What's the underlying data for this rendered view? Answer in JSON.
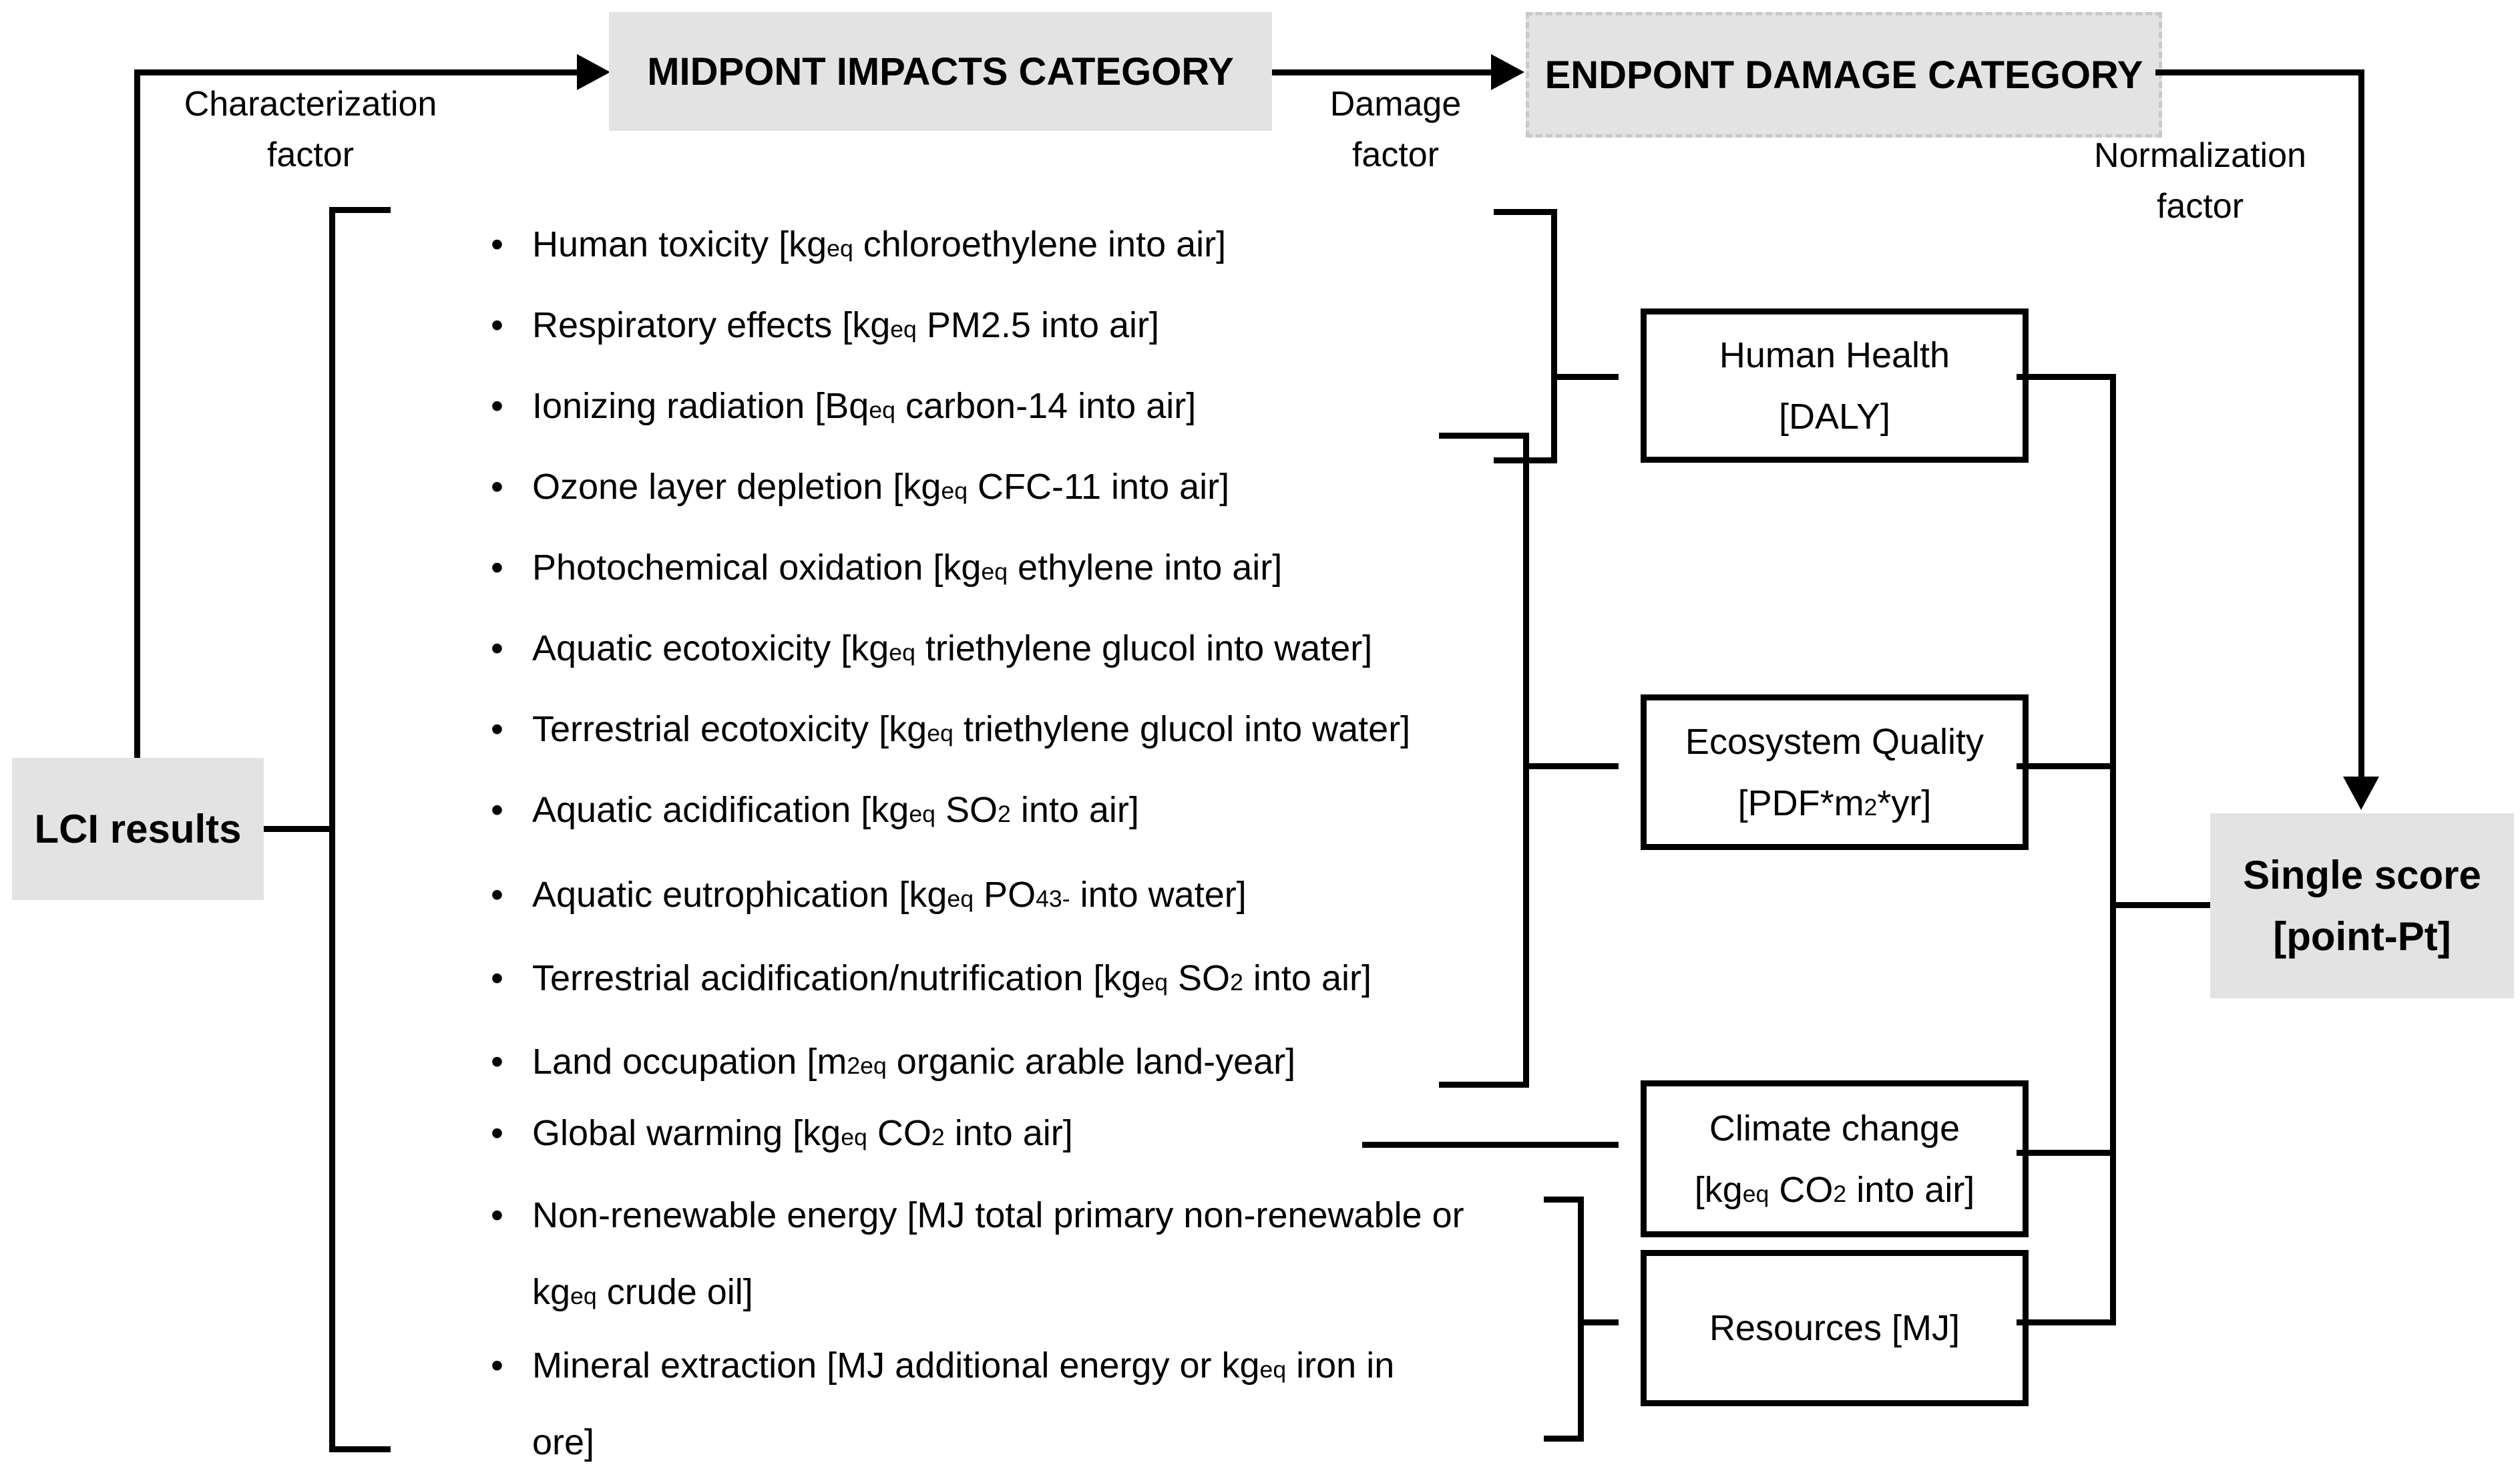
{
  "flow": {
    "midpoint_title": "MIDPONT IMPACTS CATEGORY",
    "endpoint_title": "ENDPONT DAMAGE CATEGORY",
    "lci_label": "LCI results",
    "characterization_label": [
      "Characterization",
      "factor"
    ],
    "damage_label": [
      "Damage",
      "factor"
    ],
    "normalization_label": [
      "Normalization",
      "factor"
    ],
    "single_score_lines": [
      "Single score",
      "[point-Pt]"
    ]
  },
  "midpoint_items": [
    {
      "segments": [
        {
          "t": "txt",
          "v": "Human toxicity [kg"
        },
        {
          "t": "sub",
          "v": "eq"
        },
        {
          "t": "txt",
          "v": " chloroethylene into air]"
        }
      ]
    },
    {
      "segments": [
        {
          "t": "txt",
          "v": "Respiratory effects [kg"
        },
        {
          "t": "sub",
          "v": "eq"
        },
        {
          "t": "txt",
          "v": " PM2.5 into air]"
        }
      ]
    },
    {
      "segments": [
        {
          "t": "txt",
          "v": "Ionizing radiation [Bq"
        },
        {
          "t": "sub",
          "v": "eq"
        },
        {
          "t": "txt",
          "v": " carbon-14 into air]"
        }
      ]
    },
    {
      "segments": [
        {
          "t": "txt",
          "v": "Ozone layer depletion [kg"
        },
        {
          "t": "sub",
          "v": "eq"
        },
        {
          "t": "txt",
          "v": " CFC-11 into air]"
        }
      ]
    },
    {
      "segments": [
        {
          "t": "txt",
          "v": "Photochemical oxidation [kg"
        },
        {
          "t": "sub",
          "v": "eq"
        },
        {
          "t": "txt",
          "v": " ethylene into air]"
        }
      ]
    },
    {
      "segments": [
        {
          "t": "txt",
          "v": "Aquatic ecotoxicity [kg"
        },
        {
          "t": "sub",
          "v": "eq"
        },
        {
          "t": "txt",
          "v": " triethylene glucol into water]"
        }
      ]
    },
    {
      "segments": [
        {
          "t": "txt",
          "v": "Terrestrial ecotoxicity [kg"
        },
        {
          "t": "sub",
          "v": "eq"
        },
        {
          "t": "txt",
          "v": " triethylene glucol into water]"
        }
      ]
    },
    {
      "segments": [
        {
          "t": "txt",
          "v": "Aquatic acidification [kg"
        },
        {
          "t": "sub",
          "v": "eq"
        },
        {
          "t": "txt",
          "v": " SO"
        },
        {
          "t": "sub",
          "v": "2"
        },
        {
          "t": "txt",
          "v": " into air]"
        }
      ]
    },
    {
      "segments": [
        {
          "t": "txt",
          "v": "Aquatic eutrophication [kg"
        },
        {
          "t": "sub",
          "v": "eq"
        },
        {
          "t": "txt",
          "v": " PO"
        },
        {
          "t": "sub",
          "v": "4"
        },
        {
          "t": "sup",
          "v": "3-"
        },
        {
          "t": "txt",
          "v": " into water]"
        }
      ]
    },
    {
      "segments": [
        {
          "t": "txt",
          "v": "Terrestrial acidification/nutrification [kg"
        },
        {
          "t": "sub",
          "v": "eq"
        },
        {
          "t": "txt",
          "v": " SO"
        },
        {
          "t": "sub",
          "v": "2"
        },
        {
          "t": "txt",
          "v": " into air]"
        }
      ]
    },
    {
      "segments": [
        {
          "t": "txt",
          "v": "Land occupation [m"
        },
        {
          "t": "sup",
          "v": "2"
        },
        {
          "t": "sub",
          "v": "eq"
        },
        {
          "t": "txt",
          "v": " organic arable land-year]"
        }
      ]
    },
    {
      "segments": [
        {
          "t": "txt",
          "v": "Global warming [kg"
        },
        {
          "t": "sub",
          "v": "eq"
        },
        {
          "t": "txt",
          "v": " CO"
        },
        {
          "t": "sub",
          "v": "2"
        },
        {
          "t": "txt",
          "v": " into air]"
        }
      ]
    },
    {
      "segments": [
        {
          "t": "txt",
          "v": "Non-renewable energy [MJ total primary non-renewable or"
        },
        {
          "t": "br"
        },
        {
          "t": "txt",
          "v": "kg"
        },
        {
          "t": "sub",
          "v": "eq"
        },
        {
          "t": "txt",
          "v": " crude oil]"
        }
      ]
    },
    {
      "segments": [
        {
          "t": "txt",
          "v": "Mineral extraction [MJ additional energy or kg"
        },
        {
          "t": "sub",
          "v": "eq"
        },
        {
          "t": "txt",
          "v": " iron in"
        },
        {
          "t": "br"
        },
        {
          "t": "txt",
          "v": "ore]"
        }
      ]
    }
  ],
  "endpoint_boxes": {
    "human_health": {
      "lines": [
        [
          {
            "t": "txt",
            "v": "Human Health"
          }
        ],
        [
          {
            "t": "txt",
            "v": "[DALY]"
          }
        ]
      ]
    },
    "ecosystem_quality": {
      "lines": [
        [
          {
            "t": "txt",
            "v": "Ecosystem Quality"
          }
        ],
        [
          {
            "t": "txt",
            "v": "[PDF*m"
          },
          {
            "t": "sup",
            "v": "2"
          },
          {
            "t": "txt",
            "v": "*yr]"
          }
        ]
      ]
    },
    "climate_change": {
      "lines": [
        [
          {
            "t": "txt",
            "v": "Climate change"
          }
        ],
        [
          {
            "t": "txt",
            "v": "[kg"
          },
          {
            "t": "sub",
            "v": "eq"
          },
          {
            "t": "txt",
            "v": " CO"
          },
          {
            "t": "sub",
            "v": "2"
          },
          {
            "t": "txt",
            "v": " into air]"
          }
        ]
      ]
    },
    "resources": {
      "lines": [
        [
          {
            "t": "txt",
            "v": "Resources [MJ]"
          }
        ]
      ]
    }
  },
  "colors": {
    "box_gray": "#e3e3e3",
    "line_black": "#000000",
    "background": "#ffffff"
  }
}
